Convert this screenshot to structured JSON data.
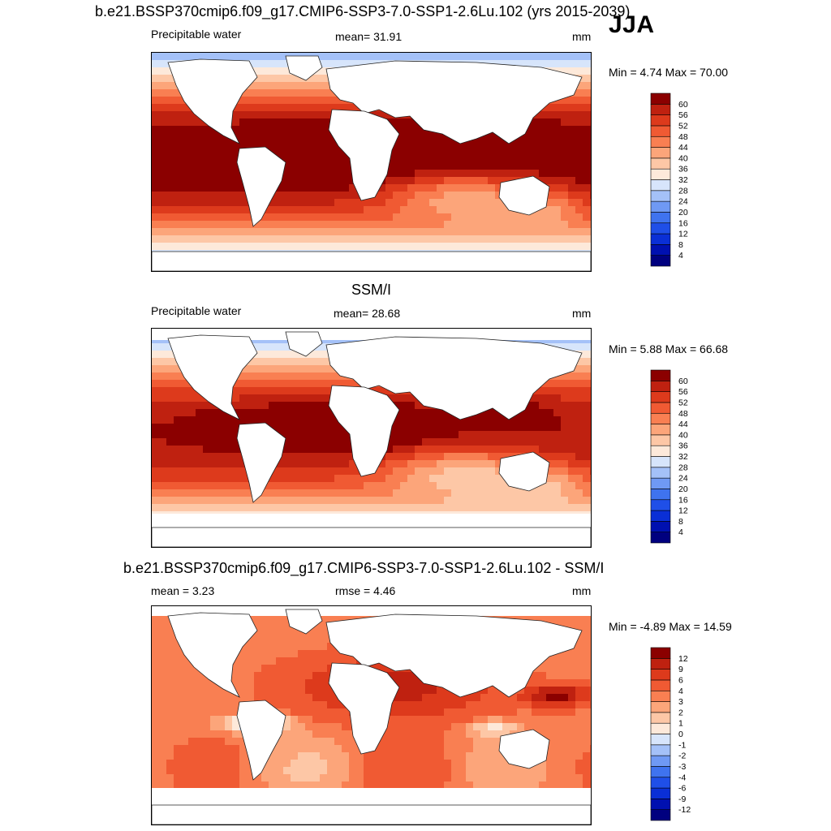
{
  "season": "JJA",
  "colors": {
    "seq": [
      "#00007f",
      "#0010b0",
      "#0a2fd6",
      "#1f4fe8",
      "#3f73ef",
      "#6f99f4",
      "#a4c1f8",
      "#d7e5fb",
      "#fde9da",
      "#fdc7a6",
      "#fca57a",
      "#f97f52",
      "#f05a33",
      "#dd3a1c",
      "#bf2110",
      "#8b0000"
    ],
    "diff": [
      "#00007f",
      "#0010b0",
      "#0a2fd6",
      "#1f4fe8",
      "#3f73ef",
      "#6f99f4",
      "#a4c1f8",
      "#d7e5fb",
      "#fde9da",
      "#fdc7a6",
      "#fca57a",
      "#f97f52",
      "#f05a33",
      "#dd3a1c",
      "#bf2110",
      "#8b0000"
    ]
  },
  "panels": [
    {
      "id": "model",
      "title": "b.e21.BSSP370cmip6.f09_g17.CMIP6-SSP3-7.0-SSP1-2.6Lu.102 (yrs 2015-2039)",
      "left_label": "Precipitable water",
      "center_label": "mean=  31.91",
      "right_label": "mm",
      "minmax": "Min =   4.74 Max =  70.00",
      "ticks": [
        "4",
        "8",
        "12",
        "16",
        "20",
        "24",
        "28",
        "32",
        "36",
        "40",
        "44",
        "48",
        "52",
        "56",
        "60"
      ]
    },
    {
      "id": "obs",
      "title": "SSM/I",
      "left_label": "Precipitable water",
      "center_label": "mean=  28.68",
      "right_label": "mm",
      "minmax": "Min =   5.88 Max =  66.68",
      "ticks": [
        "4",
        "8",
        "12",
        "16",
        "20",
        "24",
        "28",
        "32",
        "36",
        "40",
        "44",
        "48",
        "52",
        "56",
        "60"
      ]
    },
    {
      "id": "diff",
      "title": "b.e21.BSSP370cmip6.f09_g17.CMIP6-SSP3-7.0-SSP1-2.6Lu.102 - SSM/I",
      "left_label": "mean =   3.23",
      "center_label": "rmse =   4.46",
      "right_label": "mm",
      "minmax": "Min =  -4.89 Max =  14.59",
      "ticks": [
        "-12",
        "-9",
        "-6",
        "-4",
        "-3",
        "-2",
        "-1",
        "0",
        "1",
        "2",
        "3",
        "4",
        "6",
        "9",
        "12"
      ]
    }
  ]
}
